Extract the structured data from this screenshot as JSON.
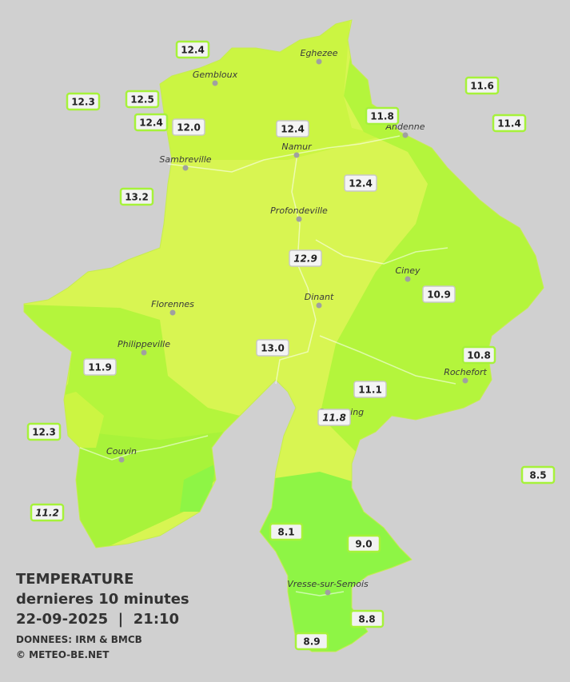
{
  "title": {
    "heading": "TEMPERATURE",
    "subtitle": "dernieres 10 minutes",
    "timestamp": "22-09-2025  |  21:10",
    "source": "DONNEES: IRM & BMCB",
    "copyright": "© METEO-BE.NET"
  },
  "cities": [
    "Eghezee",
    "Gembloux",
    "Andenne",
    "Namur",
    "Sambreville",
    "Profondeville",
    "Ciney",
    "Dinant",
    "Florennes",
    "Philippeville",
    "Rochefort",
    "Beauraing",
    "Couvin",
    "Vresse-sur-Semois"
  ],
  "stations": [
    "12.4",
    "12.3",
    "12.5",
    "12.4",
    "12.0",
    "12.4",
    "11.8",
    "11.6",
    "11.4",
    "13.2",
    "12.4",
    "12.9",
    "10.9",
    "13.0",
    "10.8",
    "11.9",
    "11.1",
    "11.8",
    "12.3",
    "8.5",
    "11.2",
    "8.1",
    "9.0",
    "8.8",
    "8.9"
  ]
}
